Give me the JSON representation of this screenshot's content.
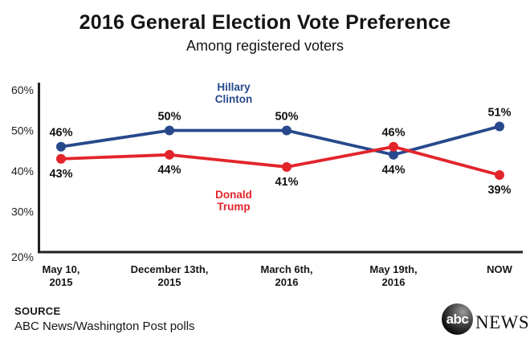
{
  "header": {
    "title": "2016 General Election Vote Preference",
    "subtitle": "Among registered voters"
  },
  "chart_data": {
    "type": "line",
    "title": "2016 General Election Vote Preference",
    "subtitle": "Among registered voters",
    "categories": [
      [
        "May 10,",
        "2015"
      ],
      [
        "December 13th,",
        "2015"
      ],
      [
        "March 6th,",
        "2016"
      ],
      [
        "May 19th,",
        "2016"
      ],
      [
        "NOW"
      ]
    ],
    "series": [
      {
        "name": "Hillary Clinton",
        "name_lines": [
          "Hillary",
          "Clinton"
        ],
        "color": "#27498c",
        "values": [
          46,
          50,
          50,
          44,
          51
        ],
        "value_labels": [
          "46%",
          "50%",
          "50%",
          "44%",
          "51%"
        ],
        "label_positions": [
          "above",
          "above",
          "above",
          "below",
          "above"
        ]
      },
      {
        "name": "Donald Trump",
        "name_lines": [
          "Donald",
          "Trump"
        ],
        "color": "#e2252b",
        "values": [
          43,
          44,
          41,
          46,
          39
        ],
        "value_labels": [
          "43%",
          "44%",
          "41%",
          "46%",
          "39%"
        ],
        "label_positions": [
          "below",
          "below",
          "below",
          "above",
          "below"
        ]
      }
    ],
    "ylim": [
      20,
      60
    ],
    "yticks": [
      {
        "value": 60,
        "label": "60%"
      },
      {
        "value": 50,
        "label": "50%"
      },
      {
        "value": 40,
        "label": "40%"
      },
      {
        "value": 30,
        "label": "30%"
      },
      {
        "value": 20,
        "label": "20%"
      }
    ],
    "grid": false,
    "legend_position": "inline-annotations",
    "axis_color": "#231f20"
  },
  "footer": {
    "source_label": "SOURCE",
    "source_text": "ABC News/Washington Post polls",
    "logo": {
      "abc": "abc",
      "news": "NEWS"
    }
  }
}
